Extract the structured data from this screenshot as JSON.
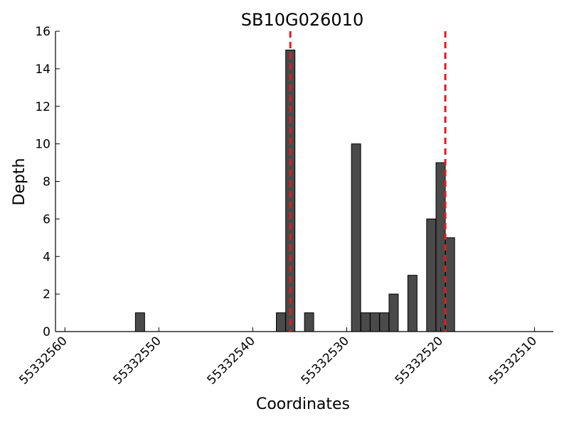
{
  "chart_data": {
    "type": "bar",
    "title": "SB10G026010",
    "xlabel": "Coordinates",
    "ylabel": "Depth",
    "xlim": [
      55332561,
      55332508
    ],
    "ylim": [
      0,
      16
    ],
    "x_reversed": true,
    "grid": false,
    "bar_color": "#4a4a4a",
    "marker_color": "#e41a1c",
    "xticks": [
      55332560,
      55332550,
      55332540,
      55332530,
      55332520,
      55332510
    ],
    "xtick_labels": [
      "55332560",
      "55332550",
      "55332540",
      "55332530",
      "55332520",
      "55332510"
    ],
    "yticks": [
      0,
      2,
      4,
      6,
      8,
      10,
      12,
      14,
      16
    ],
    "ytick_labels": [
      "0",
      "2",
      "4",
      "6",
      "8",
      "10",
      "12",
      "14",
      "16"
    ],
    "series": [
      {
        "x": [
          55332552,
          55332537,
          55332536,
          55332534,
          55332529,
          55332528,
          55332527,
          55332526,
          55332525,
          55332523,
          55332521,
          55332520,
          55332519
        ],
        "values": [
          1,
          1,
          15,
          1,
          10,
          1,
          1,
          1,
          2,
          3,
          6,
          9,
          5
        ]
      }
    ],
    "markers": [
      55332536,
      55332519.5
    ]
  }
}
